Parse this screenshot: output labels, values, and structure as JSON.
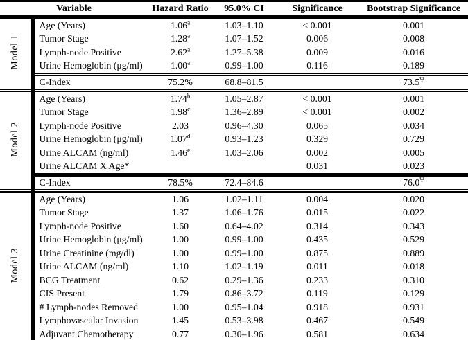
{
  "page": {
    "background": "#ffffff",
    "text_color": "#000000"
  },
  "table": {
    "headers": [
      "Variable",
      "Hazard Ratio",
      "95.0% CI",
      "Significance",
      "Bootstrap Significance"
    ],
    "models": [
      {
        "label": "Model 1",
        "rows": [
          {
            "variable": "Age (Years)",
            "hr": "1.06",
            "hr_sup": "a",
            "ci": "1.03–1.10",
            "sig": "< 0.001",
            "boot": "0.001",
            "boot_sup": ""
          },
          {
            "variable": "Tumor Stage",
            "hr": "1.28",
            "hr_sup": "a",
            "ci": "1.07–1.52",
            "sig": "0.006",
            "boot": "0.008",
            "boot_sup": ""
          },
          {
            "variable": "Lymph-node Positive",
            "hr": "2.62",
            "hr_sup": "a",
            "ci": "1.27–5.38",
            "sig": "0.009",
            "boot": "0.016",
            "boot_sup": ""
          },
          {
            "variable": "Urine Hemoglobin (μg/ml)",
            "hr": "1.00",
            "hr_sup": "a",
            "ci": "0.99–1.00",
            "sig": "0.116",
            "boot": "0.189",
            "boot_sup": ""
          }
        ],
        "c_index": {
          "label": "C-Index",
          "value": "75.2%",
          "ci": "68.8–81.5",
          "sig": "",
          "boot": "73.5",
          "boot_sup": "Ψ"
        }
      },
      {
        "label": "Model 2",
        "rows": [
          {
            "variable": "Age (Years)",
            "hr": "1.74",
            "hr_sup": "b",
            "ci": "1.05–2.87",
            "sig": "< 0.001",
            "boot": "0.001",
            "boot_sup": ""
          },
          {
            "variable": "Tumor Stage",
            "hr": "1.98",
            "hr_sup": "c",
            "ci": "1.36–2.89",
            "sig": "< 0.001",
            "boot": "0.002",
            "boot_sup": ""
          },
          {
            "variable": "Lymph-node Positive",
            "hr": "2.03",
            "hr_sup": "",
            "ci": "0.96–4.30",
            "sig": "0.065",
            "boot": "0.034",
            "boot_sup": ""
          },
          {
            "variable": "Urine Hemoglobin (μg/ml)",
            "hr": "1.07",
            "hr_sup": "d",
            "ci": "0.93–1.23",
            "sig": "0.329",
            "boot": "0.729",
            "boot_sup": ""
          },
          {
            "variable": "Urine ALCAM (ng/ml)",
            "hr": "1.46",
            "hr_sup": "e",
            "ci": "1.03–2.06",
            "sig": "0.002",
            "boot": "0.005",
            "boot_sup": ""
          },
          {
            "variable": "Urine ALCAM X Age*",
            "hr": "",
            "hr_sup": "",
            "ci": "",
            "sig": "0.031",
            "boot": "0.023",
            "boot_sup": ""
          }
        ],
        "c_index": {
          "label": "C-Index",
          "value": "78.5%",
          "ci": "72.4–84.6",
          "sig": "",
          "boot": "76.0",
          "boot_sup": "Ψ"
        }
      },
      {
        "label": "Model 3",
        "rows": [
          {
            "variable": "Age (Years)",
            "hr": "1.06",
            "hr_sup": "",
            "ci": "1.02–1.11",
            "sig": "0.004",
            "boot": "0.020",
            "boot_sup": ""
          },
          {
            "variable": "Tumor Stage",
            "hr": "1.37",
            "hr_sup": "",
            "ci": "1.06–1.76",
            "sig": "0.015",
            "boot": "0.022",
            "boot_sup": ""
          },
          {
            "variable": "Lymph-node Positive",
            "hr": "1.60",
            "hr_sup": "",
            "ci": "0.64–4.02",
            "sig": "0.314",
            "boot": "0.343",
            "boot_sup": ""
          },
          {
            "variable": "Urine Hemoglobin (μg/ml)",
            "hr": "1.00",
            "hr_sup": "",
            "ci": "0.99–1.00",
            "sig": "0.435",
            "boot": "0.529",
            "boot_sup": ""
          },
          {
            "variable": "Urine Creatinine (mg/dl)",
            "hr": "1.00",
            "hr_sup": "",
            "ci": "0.99–1.00",
            "sig": "0.875",
            "boot": "0.889",
            "boot_sup": ""
          },
          {
            "variable": "Urine ALCAM (ng/ml)",
            "hr": "1.10",
            "hr_sup": "",
            "ci": "1.02–1.19",
            "sig": "0.011",
            "boot": "0.018",
            "boot_sup": ""
          },
          {
            "variable": "BCG Treatment",
            "hr": "0.62",
            "hr_sup": "",
            "ci": "0.29–1.36",
            "sig": "0.233",
            "boot": "0.310",
            "boot_sup": ""
          },
          {
            "variable": "CIS Present",
            "hr": "1.79",
            "hr_sup": "",
            "ci": "0.86–3.72",
            "sig": "0.119",
            "boot": "0.129",
            "boot_sup": ""
          },
          {
            "variable": "# Lymph-nodes Removed",
            "hr": "1.00",
            "hr_sup": "",
            "ci": "0.95–1.04",
            "sig": "0.918",
            "boot": "0.931",
            "boot_sup": ""
          },
          {
            "variable": "Lymphovascular Invasion",
            "hr": "1.45",
            "hr_sup": "",
            "ci": "0.53–3.98",
            "sig": "0.467",
            "boot": "0.549",
            "boot_sup": ""
          },
          {
            "variable": "Adjuvant Chemotherapy",
            "hr": "0.77",
            "hr_sup": "",
            "ci": "0.30–1.96",
            "sig": "0.581",
            "boot": "0.634",
            "boot_sup": ""
          }
        ],
        "c_index": null
      }
    ]
  }
}
